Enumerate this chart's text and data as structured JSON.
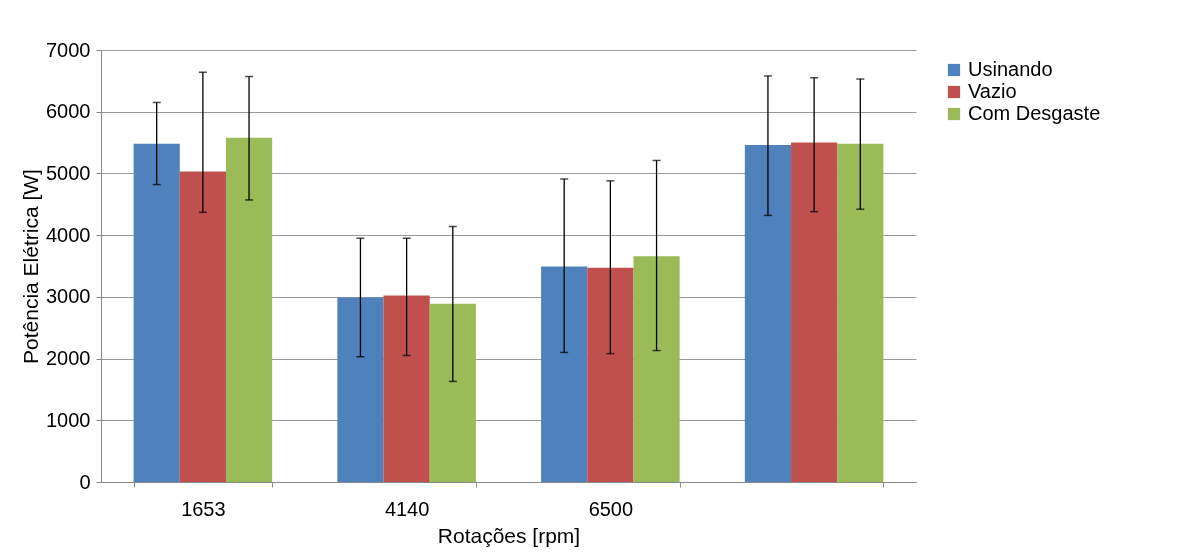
{
  "chart_data": {
    "type": "bar",
    "xlabel": "Rotações [rpm]",
    "ylabel": "Potência Elétrica [W]",
    "categories": [
      "1653",
      "4140",
      "6500",
      null
    ],
    "series": [
      {
        "name": "Usinando",
        "color": "#4f81bd",
        "values": [
          5480,
          2990,
          3490,
          5460
        ],
        "errors": [
          [
            4820,
            6150
          ],
          [
            2030,
            3950
          ],
          [
            2100,
            4910
          ],
          [
            4320,
            6580
          ]
        ]
      },
      {
        "name": "Vazio",
        "color": "#c0504d",
        "values": [
          5030,
          3020,
          3470,
          5500
        ],
        "errors": [
          [
            4370,
            6640
          ],
          [
            2050,
            3950
          ],
          [
            2080,
            4880
          ],
          [
            4380,
            6550
          ]
        ]
      },
      {
        "name": "Com Desgaste",
        "color": "#9bbb59",
        "values": [
          5580,
          2890,
          3660,
          5480
        ],
        "errors": [
          [
            4570,
            6570
          ],
          [
            1630,
            4140
          ],
          [
            2130,
            5210
          ],
          [
            4420,
            6530
          ]
        ]
      }
    ],
    "ylim": [
      0,
      7000
    ],
    "yticks": [
      0,
      1000,
      2000,
      3000,
      4000,
      5000,
      6000,
      7000
    ],
    "grid": "y",
    "legend": "right"
  }
}
